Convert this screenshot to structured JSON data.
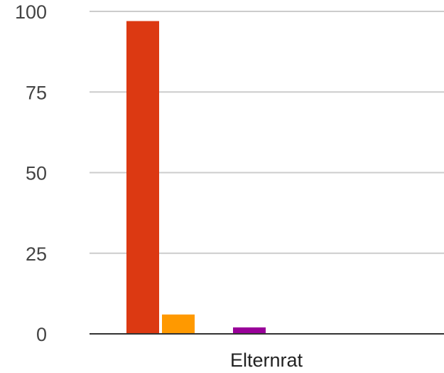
{
  "chart_data": {
    "type": "bar",
    "title": "",
    "xlabel": "",
    "ylabel": "",
    "categories": [
      "Elternrat"
    ],
    "ylim": [
      0,
      100
    ],
    "yticks": [
      "0",
      "25",
      "50",
      "75",
      "100"
    ],
    "grid": true,
    "legend": "none",
    "series": [
      {
        "values": [
          97
        ],
        "color": "#dc3912"
      },
      {
        "values": [
          6
        ],
        "color": "#ff9900"
      },
      {
        "values": [
          0
        ],
        "color": "#109618"
      },
      {
        "values": [
          2
        ],
        "color": "#990099"
      },
      {
        "values": [
          0
        ],
        "color": "#0099c6"
      },
      {
        "values": [
          0
        ],
        "color": "#dd4477"
      },
      {
        "values": [
          0
        ],
        "color": "#66aa00"
      },
      {
        "values": [
          0
        ],
        "color": "#b82e2e"
      }
    ]
  }
}
